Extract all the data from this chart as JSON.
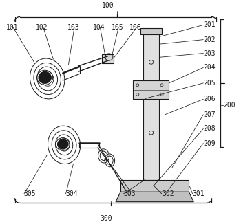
{
  "bg_color": "#ffffff",
  "line_color": "#1a1a1a",
  "label_color": "#1a1a1a",
  "fig_width": 3.5,
  "fig_height": 3.26,
  "dpi": 100
}
